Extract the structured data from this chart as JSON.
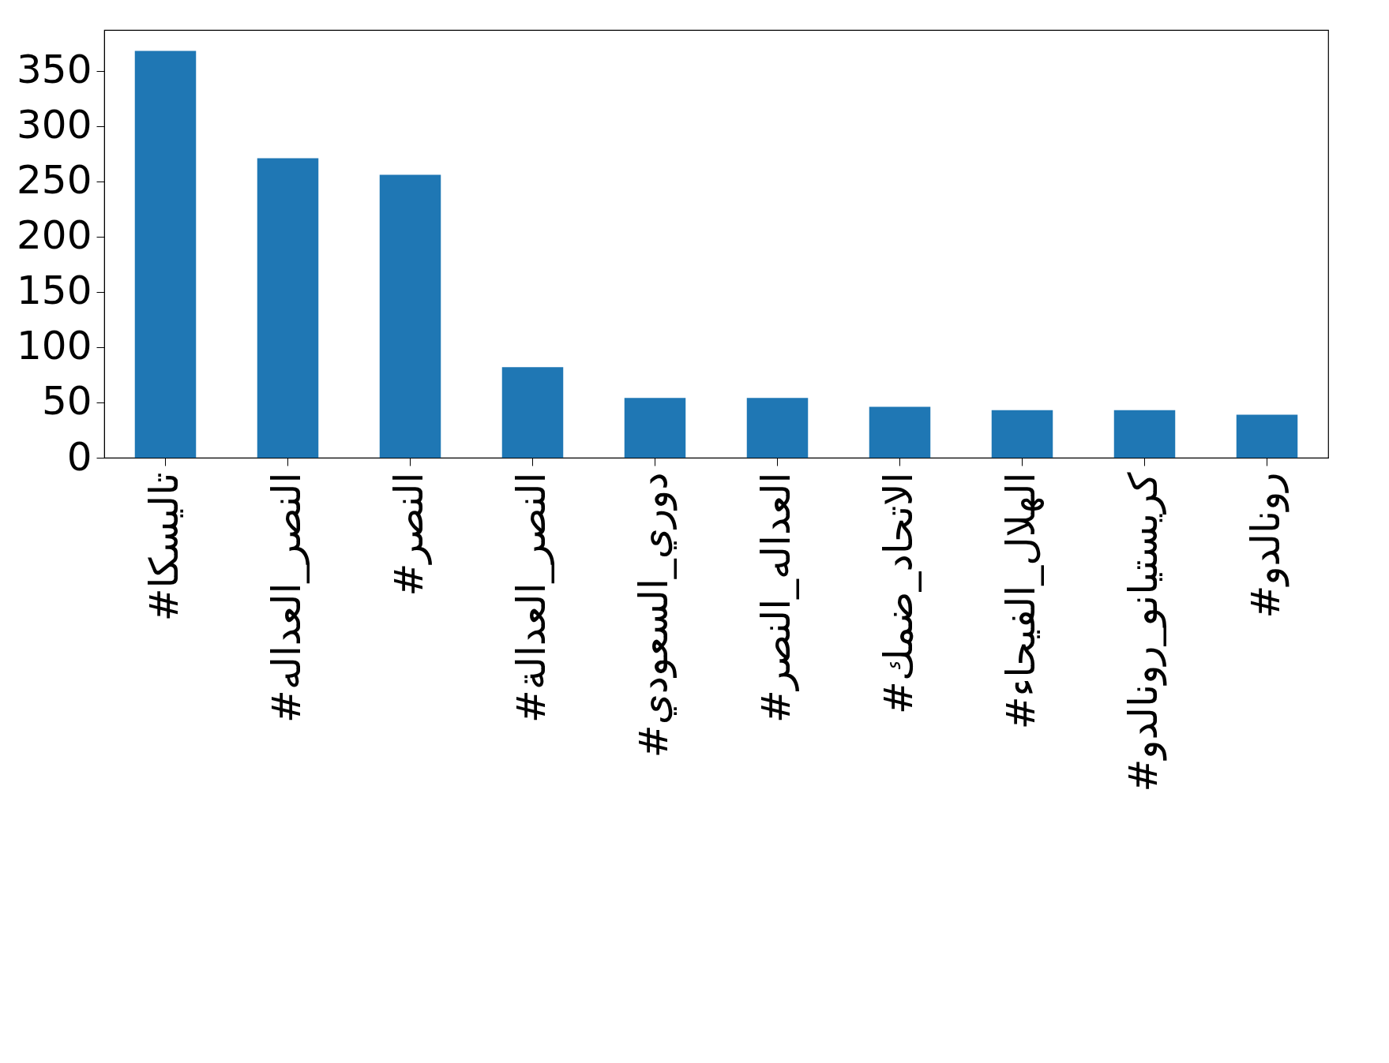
{
  "chart_data": {
    "type": "bar",
    "categories": [
      "#تاليسكا",
      "#النصر_العداله",
      "#النصر",
      "#النصر_العدالة",
      "#دوري_السعودي",
      "#العداله_النصر",
      "#الاتحاد_ضمك",
      "#الهلال_الفيحاء",
      "#كريستيانو_رونالدو",
      "#رونالدو"
    ],
    "values": [
      368,
      271,
      256,
      82,
      54,
      54,
      46,
      43,
      43,
      39
    ],
    "color": "#1f77b4",
    "ylim": [
      0,
      387
    ],
    "yticks": [
      0,
      50,
      100,
      150,
      200,
      250,
      300,
      350
    ],
    "grid": false
  }
}
